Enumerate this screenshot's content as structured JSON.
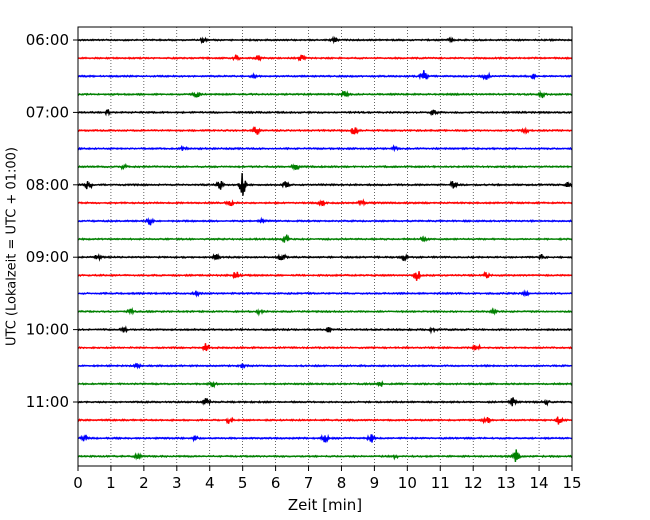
{
  "chart_data": {
    "type": "line",
    "title": "",
    "xlabel": "Zeit  [min]",
    "ylabel": "UTC (Lokalzeit = UTC + 01:00)",
    "xlim": [
      0,
      15
    ],
    "xticks": [
      "0",
      "1",
      "2",
      "3",
      "4",
      "5",
      "6",
      "7",
      "8",
      "9",
      "10",
      "11",
      "12",
      "13",
      "14",
      "15"
    ],
    "ytick_labels": [
      "06:00",
      "07:00",
      "08:00",
      "09:00",
      "10:00",
      "11:00"
    ],
    "grid": "vertical dotted lines at each minute",
    "colors": [
      "#000000",
      "#ff0000",
      "#0000ff",
      "#008000"
    ],
    "traces": [
      {
        "start": "06:00",
        "events": [
          [
            3.8,
            0.25
          ],
          [
            7.8,
            0.25
          ],
          [
            11.3,
            0.3
          ]
        ]
      },
      {
        "start": "06:15",
        "events": [
          [
            4.8,
            0.35
          ],
          [
            5.5,
            0.3
          ],
          [
            6.8,
            0.35
          ]
        ]
      },
      {
        "start": "06:30",
        "events": [
          [
            5.3,
            0.35
          ],
          [
            10.5,
            0.9
          ],
          [
            12.4,
            0.5
          ],
          [
            13.8,
            0.3
          ]
        ]
      },
      {
        "start": "06:45",
        "events": [
          [
            3.6,
            0.45
          ],
          [
            8.1,
            0.35
          ],
          [
            14.1,
            0.35
          ]
        ]
      },
      {
        "start": "07:00",
        "events": [
          [
            0.9,
            0.3
          ],
          [
            10.8,
            0.35
          ]
        ]
      },
      {
        "start": "07:15",
        "events": [
          [
            5.4,
            0.55
          ],
          [
            8.4,
            0.5
          ],
          [
            13.6,
            0.35
          ]
        ]
      },
      {
        "start": "07:30",
        "events": [
          [
            3.2,
            0.25
          ],
          [
            9.6,
            0.25
          ]
        ]
      },
      {
        "start": "07:45",
        "events": [
          [
            1.4,
            0.35
          ],
          [
            6.6,
            0.5
          ]
        ]
      },
      {
        "start": "08:00",
        "events": [
          [
            0.3,
            0.95
          ],
          [
            4.3,
            0.55
          ],
          [
            5.0,
            1.3
          ],
          [
            6.3,
            0.35
          ],
          [
            11.4,
            0.4
          ],
          [
            14.9,
            0.35
          ]
        ]
      },
      {
        "start": "08:15",
        "events": [
          [
            4.6,
            0.55
          ],
          [
            7.4,
            0.3
          ],
          [
            8.6,
            0.3
          ]
        ]
      },
      {
        "start": "08:30",
        "events": [
          [
            2.2,
            0.5
          ],
          [
            5.6,
            0.25
          ]
        ]
      },
      {
        "start": "08:45",
        "events": [
          [
            6.3,
            0.55
          ],
          [
            10.5,
            0.25
          ]
        ]
      },
      {
        "start": "09:00",
        "events": [
          [
            0.6,
            0.3
          ],
          [
            4.2,
            0.35
          ],
          [
            6.2,
            0.55
          ],
          [
            9.9,
            0.35
          ],
          [
            14.1,
            0.3
          ]
        ]
      },
      {
        "start": "09:15",
        "events": [
          [
            4.8,
            0.45
          ],
          [
            10.3,
            0.6
          ],
          [
            12.4,
            0.3
          ]
        ]
      },
      {
        "start": "09:30",
        "events": [
          [
            3.6,
            0.25
          ],
          [
            13.6,
            0.25
          ]
        ]
      },
      {
        "start": "09:45",
        "events": [
          [
            1.6,
            0.3
          ],
          [
            5.5,
            0.25
          ],
          [
            12.6,
            0.3
          ]
        ]
      },
      {
        "start": "10:00",
        "events": [
          [
            1.4,
            0.25
          ],
          [
            7.6,
            0.3
          ],
          [
            10.8,
            0.45
          ]
        ]
      },
      {
        "start": "10:15",
        "events": [
          [
            3.9,
            0.55
          ],
          [
            12.1,
            0.5
          ]
        ]
      },
      {
        "start": "10:30",
        "events": [
          [
            1.8,
            0.25
          ],
          [
            5.0,
            0.3
          ]
        ]
      },
      {
        "start": "10:45",
        "events": [
          [
            4.1,
            0.3
          ],
          [
            9.2,
            0.25
          ]
        ]
      },
      {
        "start": "11:00",
        "events": [
          [
            3.9,
            0.5
          ],
          [
            13.2,
            0.45
          ],
          [
            14.2,
            0.3
          ]
        ]
      },
      {
        "start": "11:15",
        "events": [
          [
            4.6,
            0.4
          ],
          [
            12.4,
            0.45
          ],
          [
            14.6,
            0.5
          ]
        ]
      },
      {
        "start": "11:30",
        "events": [
          [
            0.2,
            0.4
          ],
          [
            3.6,
            0.55
          ],
          [
            7.5,
            0.45
          ],
          [
            8.9,
            0.5
          ]
        ]
      },
      {
        "start": "11:45",
        "events": [
          [
            1.8,
            0.3
          ],
          [
            9.6,
            0.35
          ],
          [
            13.3,
            0.7
          ]
        ]
      }
    ]
  }
}
